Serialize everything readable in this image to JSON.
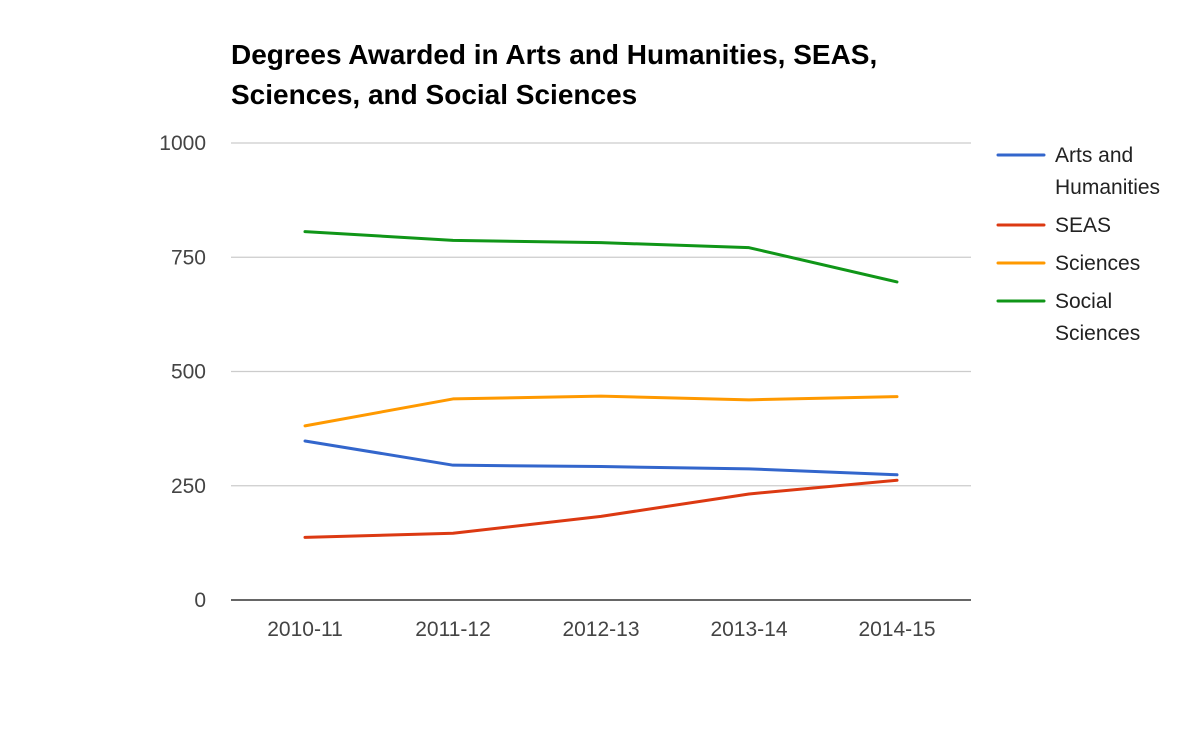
{
  "chart_data": {
    "type": "line",
    "title_lines": [
      "Degrees Awarded in Arts and Humanities, SEAS,",
      "Sciences, and Social Sciences"
    ],
    "categories": [
      "2010-11",
      "2011-12",
      "2012-13",
      "2013-14",
      "2014-15"
    ],
    "ylim": [
      0,
      1000
    ],
    "yticks": [
      "0",
      "250",
      "500",
      "750",
      "1000"
    ],
    "grid": true,
    "legend_position": "right",
    "series": [
      {
        "name_lines": [
          "Arts and",
          "Humanities"
        ],
        "color": "#3366cc",
        "values": [
          348,
          295,
          292,
          287,
          274
        ]
      },
      {
        "name_lines": [
          "SEAS"
        ],
        "color": "#dc3912",
        "values": [
          137,
          146,
          183,
          232,
          262
        ]
      },
      {
        "name_lines": [
          "Sciences"
        ],
        "color": "#ff9900",
        "values": [
          381,
          440,
          446,
          438,
          445
        ]
      },
      {
        "name_lines": [
          "Social",
          "Sciences"
        ],
        "color": "#109618",
        "values": [
          806,
          787,
          782,
          771,
          696
        ]
      }
    ]
  }
}
